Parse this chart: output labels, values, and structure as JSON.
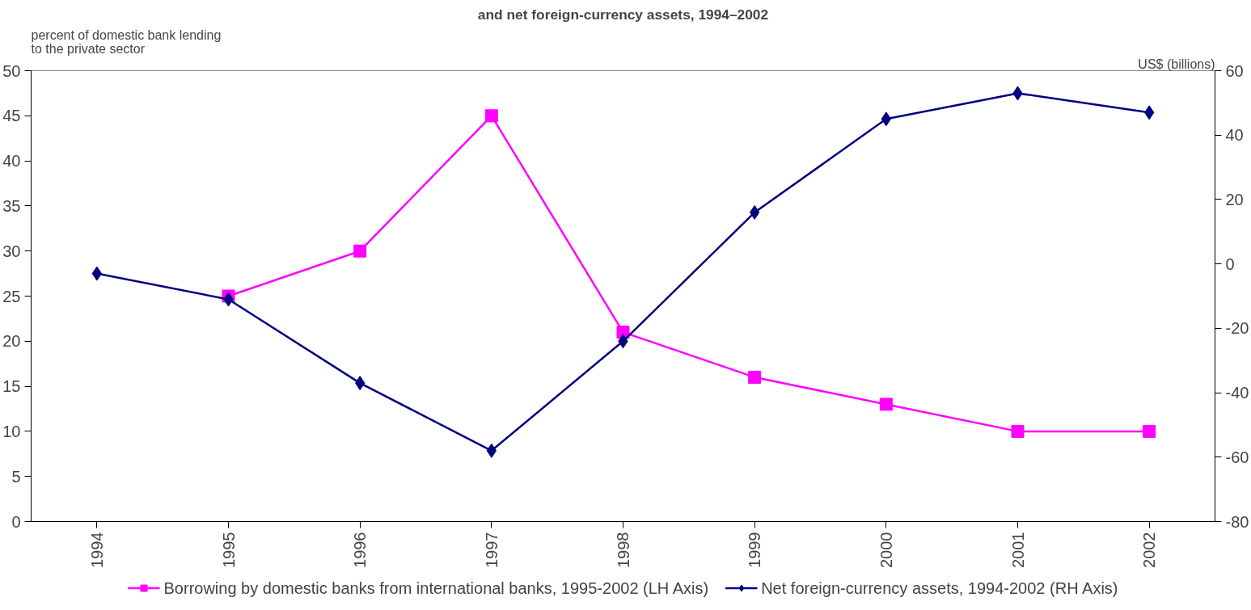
{
  "chart_data": {
    "type": "line",
    "title": "and net foreign-currency assets, 1994–2002",
    "ylabel": "percent of domestic bank lending\nto the private sector",
    "y2label": "US$ (billions)",
    "categories": [
      "1994",
      "1995",
      "1996",
      "1997",
      "1998",
      "1999",
      "2000",
      "2001",
      "2002"
    ],
    "series": [
      {
        "name": "Borrowing by domestic banks from international banks, 1995-2002 (LH Axis)",
        "color": "#ff00ff",
        "marker": "square",
        "values": [
          null,
          25,
          30,
          45,
          21,
          16,
          13,
          10,
          10
        ]
      },
      {
        "name": "Net foreign-currency assets, 1994-2002 (RH Axis)",
        "color": "#000080",
        "marker": "diamond",
        "axis": "y2",
        "values": [
          -3,
          -11,
          -37,
          -58,
          -24,
          16,
          45,
          53,
          47
        ]
      }
    ],
    "ylim": [
      0,
      50
    ],
    "yticks": [
      0,
      5,
      10,
      15,
      20,
      25,
      30,
      35,
      40,
      45,
      50
    ],
    "y2lim": [
      -80,
      60
    ],
    "y2ticks": [
      -80,
      -60,
      -40,
      -20,
      0,
      20,
      40,
      60
    ],
    "grid": false,
    "legend": "bottom",
    "line_style": "solid"
  }
}
